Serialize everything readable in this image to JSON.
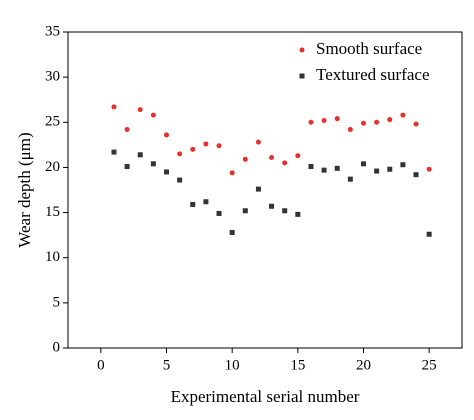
{
  "chart_data": {
    "type": "scatter",
    "x_label": "Experimental serial number",
    "y_label": "Wear depth (μm)",
    "x": [
      1,
      2,
      3,
      4,
      5,
      6,
      7,
      8,
      9,
      10,
      11,
      12,
      13,
      14,
      15,
      16,
      17,
      18,
      19,
      20,
      21,
      22,
      23,
      24,
      25
    ],
    "series": [
      {
        "name": "Smooth surface",
        "color": "#e8302a",
        "marker": "circle",
        "values": [
          26.7,
          24.2,
          26.4,
          25.8,
          23.6,
          21.5,
          22.0,
          22.6,
          22.4,
          19.4,
          20.9,
          22.8,
          21.1,
          20.5,
          21.3,
          25.0,
          25.2,
          25.4,
          24.2,
          24.9,
          25.0,
          25.3,
          25.8,
          24.8,
          19.8
        ]
      },
      {
        "name": "Textured surface",
        "color": "#333333",
        "marker": "square",
        "values": [
          21.7,
          20.1,
          21.4,
          20.4,
          19.5,
          18.6,
          15.9,
          16.2,
          14.9,
          12.8,
          15.2,
          17.6,
          15.7,
          15.2,
          14.8,
          20.1,
          19.7,
          19.9,
          18.7,
          20.4,
          19.6,
          19.8,
          20.3,
          19.2,
          12.6
        ]
      }
    ],
    "xlim": [
      -2.5,
      27.5
    ],
    "xticks": [
      0,
      5,
      10,
      15,
      20,
      25
    ],
    "ylim": [
      0,
      35
    ],
    "yticks": [
      0,
      5,
      10,
      15,
      20,
      25,
      30,
      35
    ],
    "legend": "upper right"
  }
}
